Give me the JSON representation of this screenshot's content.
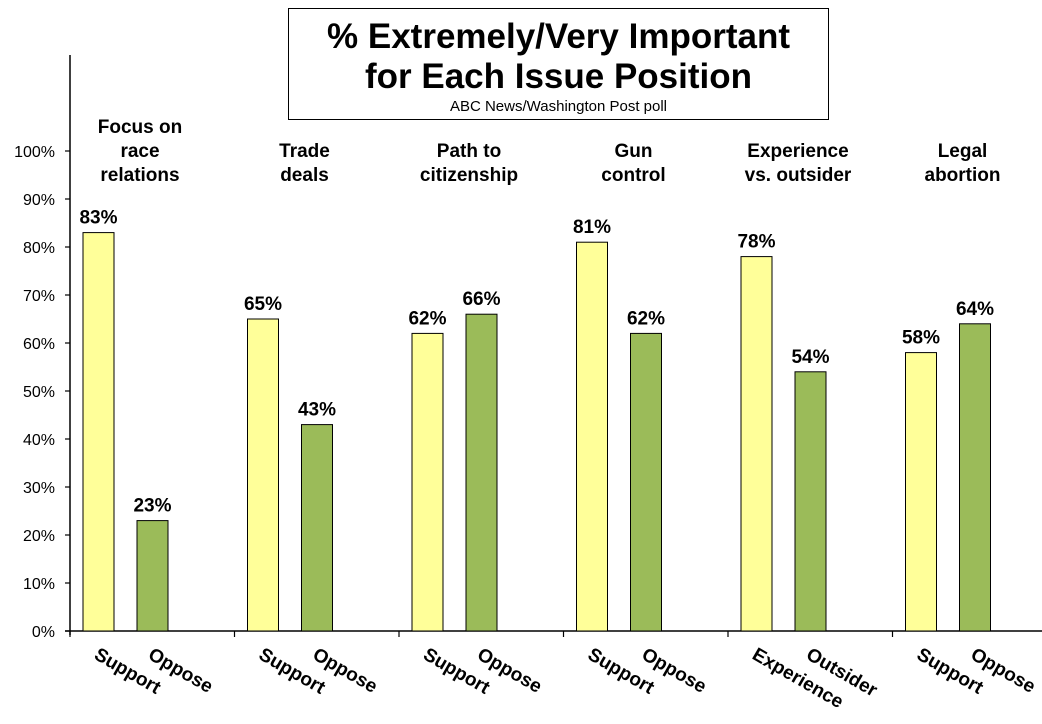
{
  "title_line1": "% Extremely/Very Important",
  "title_line2": "for Each Issue Position",
  "subtitle": "ABC News/Washington  Post poll",
  "chart_data": {
    "type": "bar",
    "title": "% Extremely/Very Important for Each Issue Position",
    "subtitle": "ABC News/Washington  Post poll",
    "ylim": [
      0,
      100
    ],
    "y_ticks": [
      "0%",
      "10%",
      "20%",
      "30%",
      "40%",
      "50%",
      "60%",
      "70%",
      "80%",
      "90%",
      "100%"
    ],
    "grid": false,
    "colors": {
      "first_bar": "#ffff99",
      "second_bar": "#9bbb59",
      "outline": "#000000"
    },
    "groups": [
      {
        "name": [
          "Focus on",
          "race",
          "relations"
        ],
        "bars": [
          {
            "label": "Support",
            "value": 83,
            "value_label": "83%"
          },
          {
            "label": "Oppose",
            "value": 23,
            "value_label": "23%"
          }
        ]
      },
      {
        "name": [
          "Trade",
          "deals"
        ],
        "bars": [
          {
            "label": "Support",
            "value": 65,
            "value_label": "65%"
          },
          {
            "label": "Oppose",
            "value": 43,
            "value_label": "43%"
          }
        ]
      },
      {
        "name": [
          "Path to",
          "citizenship"
        ],
        "bars": [
          {
            "label": "Support",
            "value": 62,
            "value_label": "62%"
          },
          {
            "label": "Oppose",
            "value": 66,
            "value_label": "66%"
          }
        ]
      },
      {
        "name": [
          "Gun",
          "control"
        ],
        "bars": [
          {
            "label": "Support",
            "value": 81,
            "value_label": "81%"
          },
          {
            "label": "Oppose",
            "value": 62,
            "value_label": "62%"
          }
        ]
      },
      {
        "name": [
          "Experience",
          "vs. outsider"
        ],
        "bars": [
          {
            "label": "Experience",
            "value": 78,
            "value_label": "78%"
          },
          {
            "label": "Outsider",
            "value": 54,
            "value_label": "54%"
          }
        ]
      },
      {
        "name": [
          "Legal",
          "abortion"
        ],
        "bars": [
          {
            "label": "Support",
            "value": 58,
            "value_label": "58%"
          },
          {
            "label": "Oppose",
            "value": 64,
            "value_label": "64%"
          }
        ]
      }
    ]
  }
}
